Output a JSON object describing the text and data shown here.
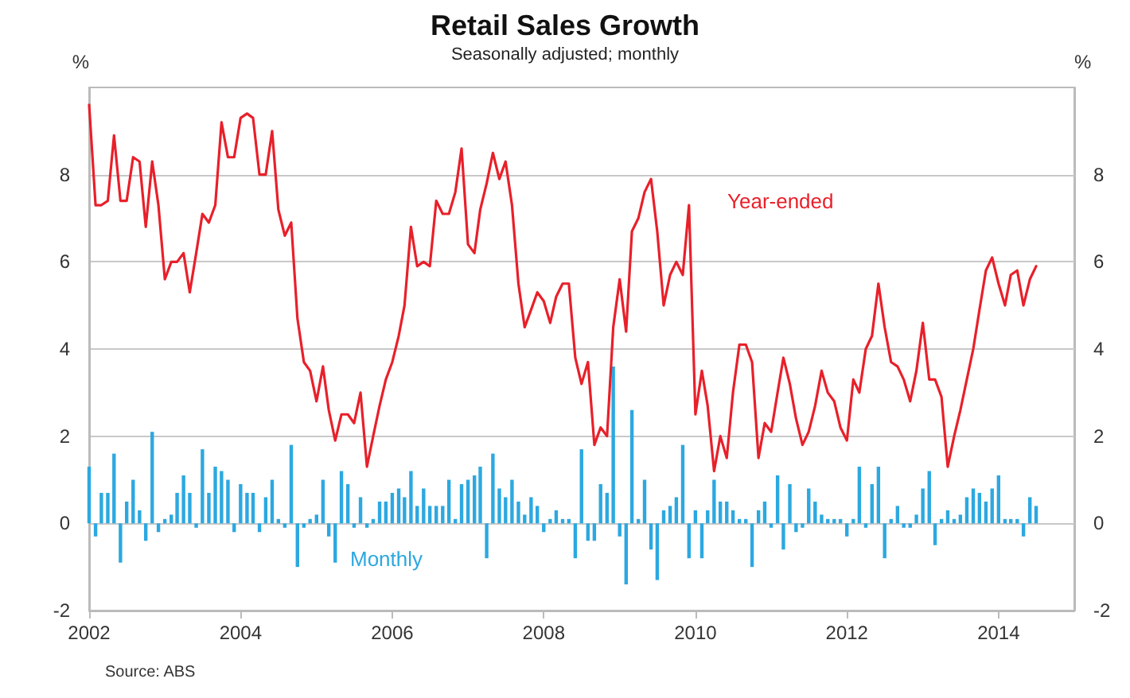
{
  "chart_data": {
    "type": "bar",
    "title": "Retail Sales Growth",
    "subtitle": "Seasonally adjusted; monthly",
    "ylabel": "%",
    "y2label": "%",
    "annotations": [
      "Source: ABS"
    ],
    "x": [
      "2002-01",
      "2002-02",
      "2002-03",
      "2002-04",
      "2002-05",
      "2002-06",
      "2002-07",
      "2002-08",
      "2002-09",
      "2002-10",
      "2002-11",
      "2002-12",
      "2003-01",
      "2003-02",
      "2003-03",
      "2003-04",
      "2003-05",
      "2003-06",
      "2003-07",
      "2003-08",
      "2003-09",
      "2003-10",
      "2003-11",
      "2003-12",
      "2004-01",
      "2004-02",
      "2004-03",
      "2004-04",
      "2004-05",
      "2004-06",
      "2004-07",
      "2004-08",
      "2004-09",
      "2004-10",
      "2004-11",
      "2004-12",
      "2005-01",
      "2005-02",
      "2005-03",
      "2005-04",
      "2005-05",
      "2005-06",
      "2005-07",
      "2005-08",
      "2005-09",
      "2005-10",
      "2005-11",
      "2005-12",
      "2006-01",
      "2006-02",
      "2006-03",
      "2006-04",
      "2006-05",
      "2006-06",
      "2006-07",
      "2006-08",
      "2006-09",
      "2006-10",
      "2006-11",
      "2006-12",
      "2007-01",
      "2007-02",
      "2007-03",
      "2007-04",
      "2007-05",
      "2007-06",
      "2007-07",
      "2007-08",
      "2007-09",
      "2007-10",
      "2007-11",
      "2007-12",
      "2008-01",
      "2008-02",
      "2008-03",
      "2008-04",
      "2008-05",
      "2008-06",
      "2008-07",
      "2008-08",
      "2008-09",
      "2008-10",
      "2008-11",
      "2008-12",
      "2009-01",
      "2009-02",
      "2009-03",
      "2009-04",
      "2009-05",
      "2009-06",
      "2009-07",
      "2009-08",
      "2009-09",
      "2009-10",
      "2009-11",
      "2009-12",
      "2010-01",
      "2010-02",
      "2010-03",
      "2010-04",
      "2010-05",
      "2010-06",
      "2010-07",
      "2010-08",
      "2010-09",
      "2010-10",
      "2010-11",
      "2010-12",
      "2011-01",
      "2011-02",
      "2011-03",
      "2011-04",
      "2011-05",
      "2011-06",
      "2011-07",
      "2011-08",
      "2011-09",
      "2011-10",
      "2011-11",
      "2011-12",
      "2012-01",
      "2012-02",
      "2012-03",
      "2012-04",
      "2012-05",
      "2012-06",
      "2012-07",
      "2012-08",
      "2012-09",
      "2012-10",
      "2012-11",
      "2012-12",
      "2013-01",
      "2013-02",
      "2013-03",
      "2013-04",
      "2013-05",
      "2013-06",
      "2013-07",
      "2013-08",
      "2013-09",
      "2013-10",
      "2013-11",
      "2013-12",
      "2014-01",
      "2014-02",
      "2014-03",
      "2014-04",
      "2014-05",
      "2014-06",
      "2014-07"
    ],
    "series": [
      {
        "name": "Year-ended",
        "type": "line",
        "color": "#e8202a",
        "values": [
          9.6,
          7.3,
          7.3,
          7.4,
          8.9,
          7.4,
          7.4,
          8.4,
          8.3,
          6.8,
          8.3,
          7.3,
          5.6,
          6.0,
          6.0,
          6.2,
          5.3,
          6.2,
          7.1,
          6.9,
          7.3,
          9.2,
          8.4,
          8.4,
          9.3,
          9.4,
          9.3,
          8.0,
          8.0,
          9.0,
          7.2,
          6.6,
          6.9,
          4.7,
          3.7,
          3.5,
          2.8,
          3.6,
          2.6,
          1.9,
          2.5,
          2.5,
          2.3,
          3.0,
          1.3,
          2.0,
          2.7,
          3.3,
          3.7,
          4.3,
          5.0,
          6.8,
          5.9,
          6.0,
          5.9,
          7.4,
          7.1,
          7.1,
          7.6,
          8.6,
          6.4,
          6.2,
          7.2,
          7.8,
          8.5,
          7.9,
          8.3,
          7.3,
          5.5,
          4.5,
          4.9,
          5.3,
          5.1,
          4.6,
          5.2,
          5.5,
          5.5,
          3.8,
          3.2,
          3.7,
          1.8,
          2.2,
          2.0,
          4.5,
          5.6,
          4.4,
          6.7,
          7.0,
          7.6,
          7.9,
          6.7,
          5.0,
          5.7,
          6.0,
          5.7,
          7.3,
          2.5,
          3.5,
          2.7,
          1.2,
          2.0,
          1.5,
          3.0,
          4.1,
          4.1,
          3.7,
          1.5,
          2.3,
          2.1,
          3.0,
          3.8,
          3.2,
          2.4,
          1.8,
          2.1,
          2.7,
          3.5,
          3.0,
          2.8,
          2.2,
          1.9,
          3.3,
          3.0,
          4.0,
          4.3,
          5.5,
          4.5,
          3.7,
          3.6,
          3.3,
          2.8,
          3.5,
          4.6,
          3.3,
          3.3,
          2.9,
          1.3,
          2.0,
          2.6,
          3.3,
          4.0,
          4.9,
          5.8,
          6.1,
          5.5,
          5.0,
          5.7,
          5.8,
          5.0,
          5.6,
          5.9
        ]
      },
      {
        "name": "Monthly",
        "color": "#2ca8e0",
        "values": [
          1.3,
          -0.3,
          0.7,
          0.7,
          1.6,
          -0.9,
          0.5,
          1.0,
          0.3,
          -0.4,
          2.1,
          -0.2,
          0.1,
          0.2,
          0.7,
          1.1,
          0.7,
          -0.1,
          1.7,
          0.7,
          1.3,
          1.2,
          1.0,
          -0.2,
          0.9,
          0.7,
          0.7,
          -0.2,
          0.6,
          1.0,
          0.1,
          -0.1,
          1.8,
          -1.0,
          -0.1,
          0.1,
          0.2,
          1.0,
          -0.3,
          -0.9,
          1.2,
          0.9,
          -0.1,
          0.6,
          -0.1,
          0.1,
          0.5,
          0.5,
          0.7,
          0.8,
          0.6,
          1.2,
          0.4,
          0.8,
          0.4,
          0.4,
          0.4,
          1.0,
          0.1,
          0.9,
          1.0,
          1.1,
          1.3,
          -0.8,
          1.6,
          0.8,
          0.6,
          1.0,
          0.5,
          0.2,
          0.6,
          0.4,
          -0.2,
          0.1,
          0.3,
          0.1,
          0.1,
          -0.8,
          1.7,
          -0.4,
          -0.4,
          0.9,
          0.7,
          3.6,
          -0.3,
          -1.4,
          2.6,
          0.1,
          1.0,
          -0.6,
          -1.3,
          0.3,
          0.4,
          0.6,
          1.8,
          -0.8,
          0.3,
          -0.8,
          0.3,
          1.0,
          0.5,
          0.5,
          0.3,
          0.1,
          0.1,
          -1.0,
          0.3,
          0.5,
          -0.1,
          1.1,
          -0.6,
          0.9,
          -0.2,
          -0.1,
          0.8,
          0.5,
          0.2,
          0.1,
          0.1,
          0.1,
          -0.3,
          0.1,
          1.3,
          -0.1,
          0.9,
          1.3,
          -0.8,
          0.1,
          0.4,
          -0.1,
          -0.1,
          0.2,
          0.8,
          1.2,
          -0.5,
          0.1,
          0.3,
          0.1,
          0.2,
          0.6,
          0.8,
          0.7,
          0.5,
          0.8,
          1.1,
          0.1,
          0.1,
          0.1,
          -0.3,
          0.6,
          0.4
        ]
      }
    ],
    "xlim": [
      "2002-01",
      "2015-01"
    ],
    "xticks": [
      {
        "value": "2002-01",
        "label": "2002"
      },
      {
        "value": "2004-01",
        "label": "2004"
      },
      {
        "value": "2006-01",
        "label": "2006"
      },
      {
        "value": "2008-01",
        "label": "2008"
      },
      {
        "value": "2010-01",
        "label": "2010"
      },
      {
        "value": "2012-01",
        "label": "2012"
      },
      {
        "value": "2014-01",
        "label": "2014"
      }
    ],
    "ylim": [
      -2,
      10
    ],
    "yticks": [
      -2,
      0,
      2,
      4,
      6,
      8
    ],
    "y2lim": [
      -2,
      10
    ],
    "y2ticks": [
      -2,
      0,
      2,
      4,
      6,
      8
    ],
    "grid": "y",
    "legend": false,
    "marker": "none",
    "line_style": "solid"
  }
}
